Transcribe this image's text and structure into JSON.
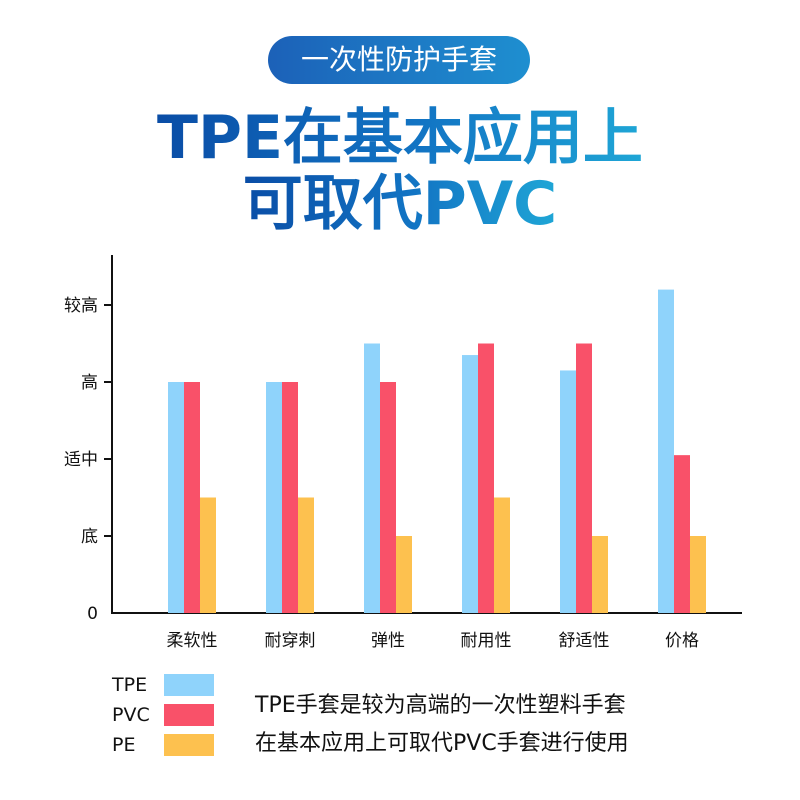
{
  "badge": "一次性防护手套",
  "headline": {
    "line1": "TPE在基本应用上",
    "line2": "可取代PVC"
  },
  "caption": {
    "line1": "TPE手套是较为高端的一次性塑料手套",
    "line2": "在基本应用上可取代PVC手套进行使用"
  },
  "colors": {
    "badge": "#1c61b8",
    "headline": "#0a64b8",
    "TPE": "#8fd3fb",
    "PVC": "#f95169",
    "PE": "#fdc14f"
  },
  "chart_data": {
    "type": "bar",
    "title": "",
    "xlabel": "",
    "ylabel": "",
    "categories": [
      "柔软性",
      "耐穿刺",
      "弹性",
      "耐用性",
      "舒适性",
      "价格"
    ],
    "y_ticks": [
      {
        "label": "0",
        "value": 0
      },
      {
        "label": "底",
        "value": 1
      },
      {
        "label": "适中",
        "value": 2
      },
      {
        "label": "高",
        "value": 3
      },
      {
        "label": "较高",
        "value": 4
      }
    ],
    "ylim": [
      0,
      4.6
    ],
    "grid": false,
    "legend": "bottom-left",
    "series": [
      {
        "name": "TPE",
        "values": [
          3.0,
          3.0,
          3.5,
          3.35,
          3.15,
          4.2
        ]
      },
      {
        "name": "PVC",
        "values": [
          3.0,
          3.0,
          3.0,
          3.5,
          3.5,
          2.05
        ]
      },
      {
        "name": "PE",
        "values": [
          1.5,
          1.5,
          1.0,
          1.5,
          1.0,
          1.0
        ]
      }
    ]
  }
}
